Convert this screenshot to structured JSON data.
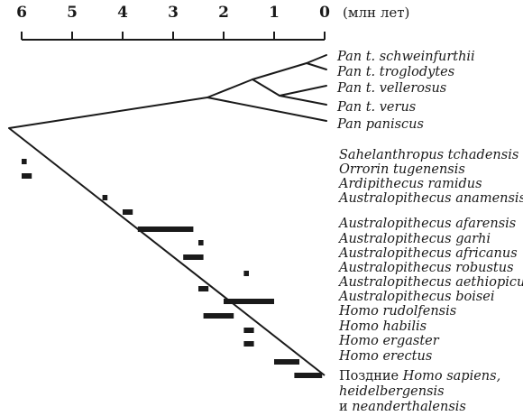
{
  "axis": {
    "ticks": [
      "6",
      "5",
      "4",
      "3",
      "2",
      "1",
      "0"
    ],
    "unit": "(млн лет)"
  },
  "pan_taxa": [
    "Pan t. schweinfurthii",
    "Pan t. troglodytes",
    "Pan t. vellerosus",
    "Pan t. verus",
    "Pan paniscus"
  ],
  "hominin_taxa": [
    "Sahelanthropus tchadensis",
    "Orrorin tugenensis",
    "Ardipithecus ramidus",
    "Australopithecus anamensis",
    "Australopithecus afarensis",
    "Australopithecus garhi",
    "Australopithecus africanus",
    "Australopithecus robustus",
    "Australopithecus aethiopicus",
    "Australopithecus boisei",
    "Homo rudolfensis",
    "Homo habilis",
    "Homo ergaster",
    "Homo erectus"
  ],
  "last_taxon": {
    "prefix": "Поздние",
    "italic": "Homo sapiens,",
    "line2": "heidelbergensis",
    "line3_prefix": "и",
    "line3_italic": "neanderthalensis"
  },
  "fossil_ranges_mya": [
    [
      6.0,
      5.9
    ],
    [
      6.0,
      5.8
    ],
    [
      4.4,
      4.3
    ],
    [
      4.0,
      3.8
    ],
    [
      3.7,
      2.6
    ],
    [
      2.5,
      2.4
    ],
    [
      2.8,
      2.4
    ],
    [
      1.6,
      1.5
    ],
    [
      2.5,
      2.3
    ],
    [
      2.0,
      1.0
    ],
    [
      2.4,
      1.8
    ],
    [
      1.6,
      1.4
    ],
    [
      1.6,
      1.4
    ],
    [
      1.0,
      0.5
    ],
    [
      0.6,
      0.05
    ]
  ]
}
